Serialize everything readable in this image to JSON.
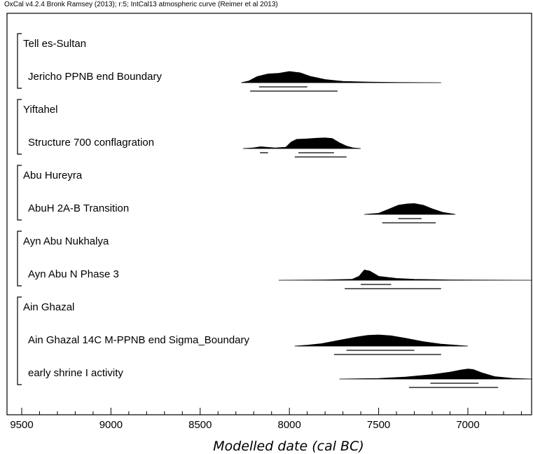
{
  "header": "OxCal v4.2.4 Bronk Ramsey (2013); r:5; IntCal13 atmospheric curve (Reimer et al 2013)",
  "chart_data": {
    "type": "density",
    "xlabel": "Modelled date (cal BC)",
    "xlim": [
      9580,
      6640
    ],
    "xticks": [
      9500,
      9000,
      8500,
      8000,
      7500,
      7000
    ],
    "xtick_labels": [
      "9500",
      "9000",
      "8500",
      "8000",
      "7500",
      "7000"
    ],
    "groups": [
      {
        "name": "Tell es-Sultan",
        "items": [
          {
            "name": "Jericho PPNB end Boundary",
            "range_1sigma": [
              [
                8170,
                7900
              ]
            ],
            "range_2sigma": [
              [
                8220,
                7730
              ]
            ],
            "density": [
              [
                8270,
                0
              ],
              [
                8230,
                0.14
              ],
              [
                8180,
                0.55
              ],
              [
                8120,
                0.78
              ],
              [
                8060,
                0.84
              ],
              [
                8000,
                1.0
              ],
              [
                7940,
                0.88
              ],
              [
                7880,
                0.55
              ],
              [
                7800,
                0.28
              ],
              [
                7700,
                0.12
              ],
              [
                7550,
                0.05
              ],
              [
                7400,
                0.02
              ],
              [
                7150,
                0
              ]
            ]
          }
        ]
      },
      {
        "name": "Yiftahel",
        "items": [
          {
            "name": "Structure 700 conflagration",
            "range_1sigma": [
              [
                8165,
                8120
              ],
              [
                7950,
                7750
              ]
            ],
            "range_2sigma": [
              [
                7970,
                7680
              ]
            ],
            "density": [
              [
                8260,
                0
              ],
              [
                8200,
                0.06
              ],
              [
                8160,
                0.16
              ],
              [
                8130,
                0.12
              ],
              [
                8080,
                0.05
              ],
              [
                8020,
                0.12
              ],
              [
                7990,
                0.58
              ],
              [
                7960,
                0.82
              ],
              [
                7900,
                0.86
              ],
              [
                7850,
                0.92
              ],
              [
                7800,
                0.95
              ],
              [
                7760,
                0.9
              ],
              [
                7720,
                0.52
              ],
              [
                7680,
                0.22
              ],
              [
                7640,
                0.05
              ],
              [
                7600,
                0
              ]
            ]
          }
        ]
      },
      {
        "name": "Abu Hureyra",
        "items": [
          {
            "name": "AbuH 2A-B Transition",
            "range_1sigma": [
              [
                7390,
                7260
              ]
            ],
            "range_2sigma": [
              [
                7480,
                7180
              ]
            ],
            "density": [
              [
                7580,
                0
              ],
              [
                7500,
                0.1
              ],
              [
                7440,
                0.48
              ],
              [
                7390,
                0.82
              ],
              [
                7340,
                0.94
              ],
              [
                7300,
                0.97
              ],
              [
                7250,
                0.82
              ],
              [
                7200,
                0.5
              ],
              [
                7140,
                0.18
              ],
              [
                7070,
                0
              ]
            ]
          }
        ]
      },
      {
        "name": "Ayn Abu Nukhalya",
        "items": [
          {
            "name": "Ayn Abu N Phase 3",
            "range_1sigma": [
              [
                7600,
                7430
              ]
            ],
            "range_2sigma": [
              [
                7690,
                7150
              ]
            ],
            "density": [
              [
                8060,
                0
              ],
              [
                7800,
                0.03
              ],
              [
                7650,
                0.08
              ],
              [
                7610,
                0.35
              ],
              [
                7580,
                0.92
              ],
              [
                7550,
                0.82
              ],
              [
                7500,
                0.35
              ],
              [
                7400,
                0.16
              ],
              [
                7300,
                0.08
              ],
              [
                7100,
                0.03
              ],
              [
                6900,
                0.01
              ],
              [
                6640,
                0
              ]
            ]
          }
        ]
      },
      {
        "name": "Ain Ghazal",
        "items": [
          {
            "name": "Ain Ghazal 14C M-PPNB end Sigma_Boundary",
            "range_1sigma": [
              [
                7680,
                7300
              ]
            ],
            "range_2sigma": [
              [
                7750,
                7150
              ]
            ],
            "density": [
              [
                7970,
                0
              ],
              [
                7900,
                0.08
              ],
              [
                7820,
                0.22
              ],
              [
                7720,
                0.52
              ],
              [
                7620,
                0.82
              ],
              [
                7560,
                0.96
              ],
              [
                7500,
                1.0
              ],
              [
                7430,
                0.92
              ],
              [
                7350,
                0.7
              ],
              [
                7250,
                0.4
              ],
              [
                7150,
                0.18
              ],
              [
                7000,
                0
              ]
            ]
          },
          {
            "name": "early shrine I activity",
            "range_1sigma": [
              [
                7210,
                6940
              ]
            ],
            "range_2sigma": [
              [
                7330,
                6830
              ]
            ],
            "density": [
              [
                7720,
                0
              ],
              [
                7500,
                0.05
              ],
              [
                7350,
                0.18
              ],
              [
                7200,
                0.4
              ],
              [
                7100,
                0.62
              ],
              [
                7040,
                0.8
              ],
              [
                7000,
                0.9
              ],
              [
                6970,
                0.85
              ],
              [
                6920,
                0.55
              ],
              [
                6850,
                0.22
              ],
              [
                6750,
                0.06
              ],
              [
                6640,
                0
              ]
            ]
          }
        ]
      }
    ]
  }
}
